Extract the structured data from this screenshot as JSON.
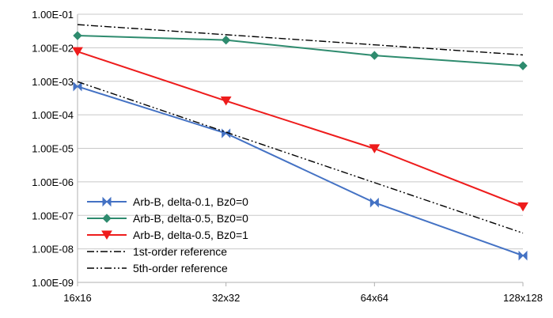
{
  "chart_data": {
    "type": "line",
    "title": "",
    "xlabel": "",
    "ylabel": "",
    "yscale": "log",
    "ylim": [
      1e-09,
      0.1
    ],
    "grid": true,
    "legend_position": "bottom-left",
    "categories": [
      "16x16",
      "32x32",
      "64x64",
      "128x128"
    ],
    "y_tick_labels": [
      "1.00E-01",
      "1.00E-02",
      "1.00E-03",
      "1.00E-04",
      "1.00E-05",
      "1.00E-06",
      "1.00E-07",
      "1.00E-08",
      "1.00E-09"
    ],
    "series": [
      {
        "name": "Arb-B, delta-0.1, Bz0=0",
        "values": [
          0.0007,
          2.8e-05,
          2.4e-07,
          6.3e-09
        ],
        "color": "#4472c4",
        "marker": "bowtie",
        "dash": "solid"
      },
      {
        "name": "Arb-B, delta-0.5, Bz0=0",
        "values": [
          0.023,
          0.017,
          0.0059,
          0.0029
        ],
        "color": "#2e8b6e",
        "marker": "diamond",
        "dash": "solid"
      },
      {
        "name": "Arb-B, delta-0.5, Bz0=1",
        "values": [
          0.0077,
          0.00026,
          9.8e-06,
          1.8e-07
        ],
        "color": "#ee1c1c",
        "marker": "triangle-down",
        "dash": "solid"
      },
      {
        "name": "1st-order reference",
        "values": [
          0.049,
          0.0245,
          0.01225,
          0.006125
        ],
        "color": "#000000",
        "marker": "none",
        "dash": "dashdot"
      },
      {
        "name": "5th-order reference",
        "values": [
          0.00097,
          3.03e-05,
          9.47e-07,
          2.96e-08
        ],
        "color": "#000000",
        "marker": "none",
        "dash": "dashdotdot"
      }
    ]
  }
}
